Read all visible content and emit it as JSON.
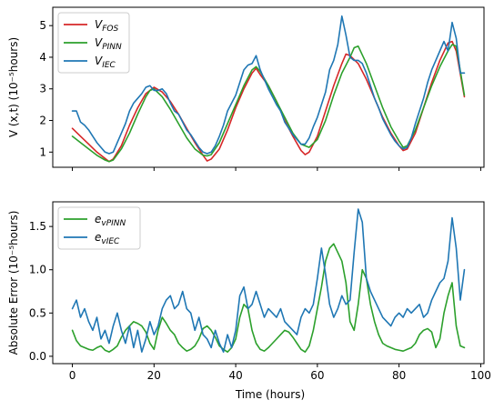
{
  "chart_data": [
    {
      "type": "line",
      "xlabel": "",
      "ylabel": "V (x,t) (10⁻⁵hours)",
      "xlim": [
        -4.8,
        100.8
      ],
      "ylim": [
        0.52,
        5.58
      ],
      "xticks": [
        0,
        20,
        40,
        60,
        80,
        100
      ],
      "xtick_labels": [],
      "yticks": [
        1,
        2,
        3,
        4,
        5
      ],
      "ytick_labels": [
        "1",
        "2",
        "3",
        "4",
        "5"
      ],
      "legend_position": "upper-left",
      "series": [
        {
          "name": "V_FOS",
          "label_main": "V",
          "label_sub": "FOS",
          "color": "#d62728",
          "x": [
            0,
            2,
            4,
            6,
            8,
            9,
            10,
            12,
            14,
            16,
            18,
            20,
            22,
            24,
            26,
            28,
            30,
            32,
            33,
            34,
            36,
            38,
            40,
            42,
            44,
            45,
            46,
            48,
            50,
            52,
            54,
            56,
            57,
            58,
            60,
            62,
            64,
            66,
            67,
            68,
            70,
            72,
            74,
            76,
            78,
            80,
            81,
            82,
            84,
            86,
            88,
            90,
            92,
            93,
            94,
            96
          ],
          "y": [
            1.75,
            1.5,
            1.25,
            1.0,
            0.8,
            0.7,
            0.78,
            1.2,
            1.85,
            2.4,
            2.85,
            3.05,
            2.9,
            2.6,
            2.2,
            1.75,
            1.3,
            0.9,
            0.72,
            0.78,
            1.1,
            1.7,
            2.4,
            3.0,
            3.5,
            3.65,
            3.45,
            3.1,
            2.6,
            2.0,
            1.5,
            1.05,
            0.92,
            1.0,
            1.5,
            2.3,
            3.1,
            3.8,
            4.1,
            4.05,
            3.8,
            3.3,
            2.7,
            2.1,
            1.6,
            1.2,
            1.05,
            1.1,
            1.6,
            2.4,
            3.2,
            3.9,
            4.45,
            4.5,
            4.2,
            2.75
          ]
        },
        {
          "name": "V_PINN",
          "label_main": "V",
          "label_sub": "PINN",
          "color": "#2ca02c",
          "x": [
            0,
            2,
            4,
            6,
            8,
            9,
            10,
            12,
            14,
            16,
            18,
            19,
            20,
            22,
            24,
            26,
            28,
            30,
            32,
            33,
            34,
            36,
            38,
            40,
            42,
            44,
            45,
            46,
            48,
            50,
            52,
            54,
            56,
            58,
            60,
            62,
            64,
            66,
            68,
            69,
            70,
            72,
            74,
            76,
            78,
            80,
            81,
            82,
            84,
            86,
            88,
            90,
            92,
            93,
            94,
            96
          ],
          "y": [
            1.5,
            1.3,
            1.1,
            0.9,
            0.75,
            0.7,
            0.75,
            1.1,
            1.6,
            2.2,
            2.75,
            2.95,
            3.0,
            2.75,
            2.35,
            1.9,
            1.45,
            1.1,
            0.9,
            0.88,
            0.92,
            1.3,
            1.9,
            2.5,
            3.1,
            3.6,
            3.7,
            3.55,
            3.1,
            2.6,
            2.1,
            1.6,
            1.25,
            1.15,
            1.4,
            2.0,
            2.8,
            3.5,
            4.0,
            4.3,
            4.35,
            3.8,
            3.1,
            2.4,
            1.8,
            1.35,
            1.15,
            1.2,
            1.7,
            2.4,
            3.1,
            3.7,
            4.2,
            4.4,
            4.35,
            2.8
          ]
        },
        {
          "name": "V_IEC",
          "label_main": "V",
          "label_sub": "IEC",
          "color": "#1f77b4",
          "x": [
            0,
            1,
            2,
            3,
            4,
            5,
            6,
            7,
            8,
            9,
            10,
            11,
            12,
            13,
            14,
            15,
            16,
            17,
            18,
            19,
            20,
            21,
            22,
            23,
            24,
            25,
            26,
            27,
            28,
            29,
            30,
            31,
            32,
            33,
            34,
            35,
            36,
            37,
            38,
            39,
            40,
            41,
            42,
            43,
            44,
            45,
            46,
            47,
            48,
            49,
            50,
            51,
            52,
            53,
            54,
            55,
            56,
            57,
            58,
            59,
            60,
            61,
            62,
            63,
            64,
            65,
            66,
            67,
            68,
            69,
            70,
            71,
            72,
            73,
            74,
            75,
            76,
            77,
            78,
            79,
            80,
            81,
            82,
            83,
            84,
            85,
            86,
            87,
            88,
            89,
            90,
            91,
            92,
            93,
            94,
            95,
            96
          ],
          "y": [
            2.3,
            2.3,
            1.95,
            1.85,
            1.7,
            1.5,
            1.3,
            1.15,
            1.0,
            0.95,
            1.0,
            1.3,
            1.6,
            1.9,
            2.3,
            2.55,
            2.7,
            2.85,
            3.05,
            3.1,
            2.95,
            2.95,
            3.0,
            2.85,
            2.55,
            2.3,
            2.2,
            1.95,
            1.7,
            1.55,
            1.35,
            1.15,
            1.0,
            0.95,
            1.0,
            1.2,
            1.5,
            1.85,
            2.3,
            2.55,
            2.8,
            3.2,
            3.6,
            3.75,
            3.8,
            4.05,
            3.6,
            3.3,
            3.0,
            2.75,
            2.5,
            2.3,
            1.95,
            1.75,
            1.55,
            1.4,
            1.25,
            1.25,
            1.45,
            1.8,
            2.1,
            2.5,
            2.9,
            3.6,
            3.9,
            4.4,
            5.3,
            4.7,
            4.0,
            3.9,
            3.9,
            3.8,
            3.5,
            3.1,
            2.7,
            2.4,
            2.05,
            1.8,
            1.55,
            1.35,
            1.2,
            1.1,
            1.15,
            1.45,
            1.9,
            2.3,
            2.7,
            3.2,
            3.6,
            3.9,
            4.2,
            4.5,
            4.2,
            5.1,
            4.6,
            3.5,
            3.5
          ]
        }
      ]
    },
    {
      "type": "line",
      "xlabel": "Time (hours)",
      "ylabel": "Absolute Error (10⁻⁵hours)",
      "xlim": [
        -4.8,
        100.8
      ],
      "ylim": [
        -0.085,
        1.785
      ],
      "xticks": [
        0,
        20,
        40,
        60,
        80,
        100
      ],
      "xtick_labels": [
        "0",
        "20",
        "40",
        "60",
        "80",
        "100"
      ],
      "yticks": [
        0.0,
        0.5,
        1.0,
        1.5
      ],
      "ytick_labels": [
        "0.0",
        "0.5",
        "1.0",
        "1.5"
      ],
      "legend_position": "upper-left",
      "series": [
        {
          "name": "e_vPINN",
          "label_main": "e",
          "label_sub": "vPINN",
          "color": "#2ca02c",
          "x": [
            0,
            1,
            2,
            3,
            4,
            5,
            6,
            7,
            8,
            9,
            10,
            11,
            12,
            13,
            14,
            15,
            16,
            17,
            18,
            19,
            20,
            21,
            22,
            23,
            24,
            25,
            26,
            27,
            28,
            29,
            30,
            31,
            32,
            33,
            34,
            35,
            36,
            37,
            38,
            39,
            40,
            41,
            42,
            43,
            44,
            45,
            46,
            47,
            48,
            49,
            50,
            51,
            52,
            53,
            54,
            55,
            56,
            57,
            58,
            59,
            60,
            61,
            62,
            63,
            64,
            65,
            66,
            67,
            68,
            69,
            70,
            71,
            72,
            73,
            74,
            75,
            76,
            77,
            78,
            79,
            80,
            81,
            82,
            83,
            84,
            85,
            86,
            87,
            88,
            89,
            90,
            91,
            92,
            93,
            94,
            95,
            96
          ],
          "y": [
            0.3,
            0.18,
            0.12,
            0.1,
            0.08,
            0.07,
            0.1,
            0.12,
            0.07,
            0.05,
            0.08,
            0.12,
            0.22,
            0.3,
            0.35,
            0.4,
            0.38,
            0.35,
            0.28,
            0.15,
            0.08,
            0.3,
            0.45,
            0.38,
            0.3,
            0.25,
            0.15,
            0.1,
            0.06,
            0.08,
            0.12,
            0.2,
            0.32,
            0.35,
            0.3,
            0.22,
            0.12,
            0.08,
            0.05,
            0.1,
            0.2,
            0.45,
            0.6,
            0.55,
            0.3,
            0.15,
            0.08,
            0.06,
            0.1,
            0.15,
            0.2,
            0.25,
            0.3,
            0.28,
            0.22,
            0.15,
            0.08,
            0.05,
            0.12,
            0.3,
            0.55,
            0.8,
            1.1,
            1.25,
            1.3,
            1.2,
            1.1,
            0.85,
            0.4,
            0.3,
            0.6,
            1.0,
            0.9,
            0.6,
            0.4,
            0.25,
            0.15,
            0.12,
            0.1,
            0.08,
            0.07,
            0.06,
            0.08,
            0.1,
            0.15,
            0.25,
            0.3,
            0.32,
            0.28,
            0.1,
            0.2,
            0.5,
            0.7,
            0.85,
            0.35,
            0.12,
            0.1
          ]
        },
        {
          "name": "e_vIEC",
          "label_main": "e",
          "label_sub": "vIEC",
          "color": "#1f77b4",
          "x": [
            0,
            1,
            2,
            3,
            4,
            5,
            6,
            7,
            8,
            9,
            10,
            11,
            12,
            13,
            14,
            15,
            16,
            17,
            18,
            19,
            20,
            21,
            22,
            23,
            24,
            25,
            26,
            27,
            28,
            29,
            30,
            31,
            32,
            33,
            34,
            35,
            36,
            37,
            38,
            39,
            40,
            41,
            42,
            43,
            44,
            45,
            46,
            47,
            48,
            49,
            50,
            51,
            52,
            53,
            54,
            55,
            56,
            57,
            58,
            59,
            60,
            61,
            62,
            63,
            64,
            65,
            66,
            67,
            68,
            69,
            70,
            71,
            72,
            73,
            74,
            75,
            76,
            77,
            78,
            79,
            80,
            81,
            82,
            83,
            84,
            85,
            86,
            87,
            88,
            89,
            90,
            91,
            92,
            93,
            94,
            95,
            96
          ],
          "y": [
            0.55,
            0.65,
            0.45,
            0.55,
            0.4,
            0.3,
            0.45,
            0.2,
            0.3,
            0.15,
            0.35,
            0.5,
            0.3,
            0.15,
            0.35,
            0.1,
            0.3,
            0.05,
            0.2,
            0.4,
            0.25,
            0.35,
            0.55,
            0.65,
            0.7,
            0.55,
            0.6,
            0.75,
            0.55,
            0.5,
            0.3,
            0.45,
            0.25,
            0.2,
            0.1,
            0.3,
            0.15,
            0.05,
            0.25,
            0.1,
            0.3,
            0.7,
            0.8,
            0.55,
            0.6,
            0.75,
            0.6,
            0.45,
            0.55,
            0.5,
            0.45,
            0.55,
            0.4,
            0.35,
            0.3,
            0.25,
            0.45,
            0.55,
            0.5,
            0.6,
            0.9,
            1.25,
            0.95,
            0.6,
            0.45,
            0.55,
            0.7,
            0.6,
            0.65,
            1.2,
            1.7,
            1.55,
            0.9,
            0.75,
            0.65,
            0.55,
            0.45,
            0.4,
            0.35,
            0.45,
            0.5,
            0.45,
            0.55,
            0.5,
            0.55,
            0.6,
            0.45,
            0.5,
            0.65,
            0.75,
            0.85,
            0.9,
            1.1,
            1.6,
            1.25,
            0.65,
            1.0
          ]
        }
      ]
    }
  ]
}
